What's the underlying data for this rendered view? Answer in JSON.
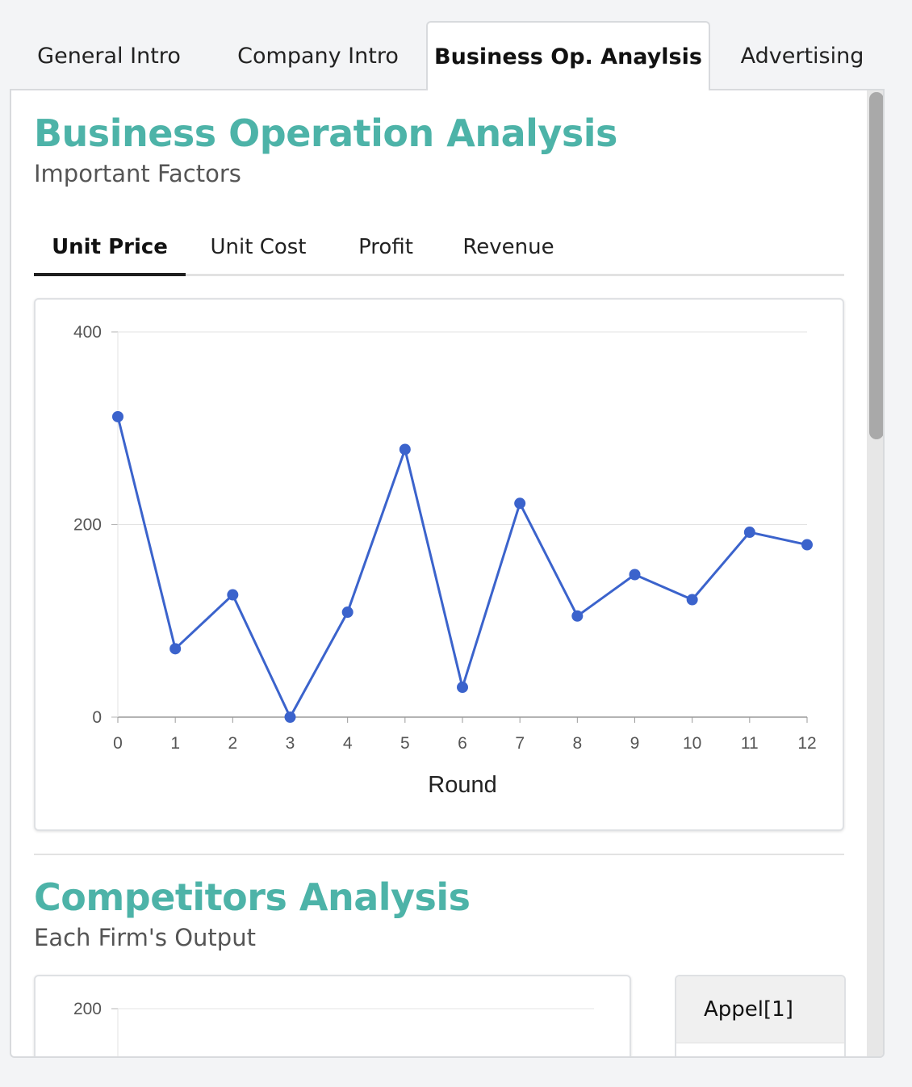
{
  "top_tabs": [
    {
      "label": "General Intro",
      "active": false
    },
    {
      "label": "Company Intro",
      "active": false
    },
    {
      "label": "Business Op. Anaylsis",
      "active": true
    },
    {
      "label": "Advertising",
      "active": false
    }
  ],
  "business_section": {
    "title": "Business Operation Analysis",
    "subtitle": "Important Factors",
    "tabs": [
      {
        "label": "Unit Price",
        "active": true
      },
      {
        "label": "Unit Cost",
        "active": false
      },
      {
        "label": "Profit",
        "active": false
      },
      {
        "label": "Revenue",
        "active": false
      }
    ]
  },
  "chart_data": [
    {
      "type": "line",
      "x": [
        0,
        1,
        2,
        3,
        4,
        5,
        6,
        7,
        8,
        9,
        10,
        11,
        12
      ],
      "series": [
        {
          "values": [
            312,
            71,
            127,
            0,
            109,
            278,
            31,
            222,
            105,
            148,
            122,
            192,
            179
          ],
          "color": "#3b63cc"
        }
      ],
      "xlabel": "Round",
      "ylabel": "",
      "ylim": [
        0,
        400
      ],
      "yticks": [
        "0",
        "200",
        "400"
      ],
      "xticks": [
        "0",
        "1",
        "2",
        "3",
        "4",
        "5",
        "6",
        "7",
        "8",
        "9",
        "10",
        "11",
        "12"
      ],
      "grid": true
    },
    {
      "type": "bar",
      "yticks_visible": [
        "200"
      ],
      "note_partial": true
    }
  ],
  "competitors_section": {
    "title": "Competitors Analysis",
    "subtitle": "Each Firm's Output",
    "legend_head": "Appel[1]"
  },
  "colors": {
    "accent": "#4db3a8",
    "series": "#3b63cc"
  }
}
